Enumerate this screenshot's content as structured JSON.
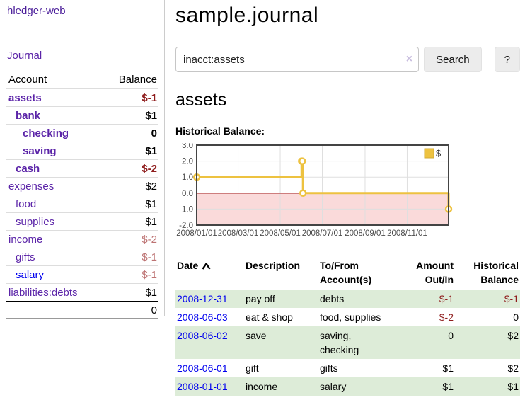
{
  "app": {
    "brand": "hledger-web",
    "nav_journal": "Journal"
  },
  "colors": {
    "link_purple": "#5b24a8",
    "link_blue": "#0000ee",
    "negative_strong": "#8f1d1d",
    "negative_soft": "#bd7373",
    "row_green": "#ddecd8",
    "series_yellow": "#EDC240",
    "chart_negative_region": "#fadada",
    "chart_zero_line": "#a22222",
    "button_gray": "#ececec"
  },
  "sidebar": {
    "header": {
      "account": "Account",
      "balance": "Balance"
    },
    "accounts": [
      {
        "name": "assets",
        "depth": 1,
        "bold": true,
        "balance": "$-1",
        "balance_style": "neg-strong",
        "link_style": "visited"
      },
      {
        "name": "bank",
        "depth": 2,
        "bold": true,
        "balance": "$1",
        "balance_style": "pos",
        "link_style": "visited"
      },
      {
        "name": "checking",
        "depth": 3,
        "bold": true,
        "balance": "0",
        "balance_style": "pos",
        "link_style": "visited"
      },
      {
        "name": "saving",
        "depth": 3,
        "bold": true,
        "balance": "$1",
        "balance_style": "pos",
        "link_style": "visited"
      },
      {
        "name": "cash",
        "depth": 2,
        "bold": true,
        "balance": "$-2",
        "balance_style": "neg-strong",
        "link_style": "visited"
      },
      {
        "name": "expenses",
        "depth": 1,
        "bold": false,
        "balance": "$2",
        "balance_style": "pos",
        "link_style": "visited"
      },
      {
        "name": "food",
        "depth": 2,
        "bold": false,
        "balance": "$1",
        "balance_style": "pos",
        "link_style": "visited"
      },
      {
        "name": "supplies",
        "depth": 2,
        "bold": false,
        "balance": "$1",
        "balance_style": "pos",
        "link_style": "visited"
      },
      {
        "name": "income",
        "depth": 1,
        "bold": false,
        "balance": "$-2",
        "balance_style": "neg-soft",
        "link_style": "visited"
      },
      {
        "name": "gifts",
        "depth": 2,
        "bold": false,
        "balance": "$-1",
        "balance_style": "neg-soft",
        "link_style": "visited"
      },
      {
        "name": "salary",
        "depth": 2,
        "bold": false,
        "balance": "$-1",
        "balance_style": "neg-soft",
        "link_style": "unvisited"
      },
      {
        "name": "liabilities:debts",
        "depth": 1,
        "bold": false,
        "balance": "$1",
        "balance_style": "pos",
        "link_style": "visited"
      }
    ],
    "total": "0"
  },
  "header": {
    "title": "sample.journal"
  },
  "search": {
    "value": "inacct:assets",
    "clear_icon": "×",
    "button": "Search",
    "help_button": "?"
  },
  "account_page": {
    "title": "assets",
    "chart_label": "Historical Balance:"
  },
  "chart_data": {
    "type": "line",
    "title": "Historical Balance",
    "step": true,
    "series": [
      {
        "name": "$",
        "color": "#EDC240",
        "points": [
          [
            "2008-01-01",
            1
          ],
          [
            "2008-06-01",
            2
          ],
          [
            "2008-06-02",
            2
          ],
          [
            "2008-06-03",
            0
          ],
          [
            "2008-12-31",
            -1
          ]
        ]
      }
    ],
    "x_range": [
      "2008-01-01",
      "2008-12-31"
    ],
    "ylim": [
      -2,
      3
    ],
    "y_ticks": [
      3.0,
      2.0,
      1.0,
      0.0,
      -1.0,
      -2.0
    ],
    "x_ticks": [
      "2008/01/01",
      "2008/03/01",
      "2008/05/01",
      "2008/07/01",
      "2008/09/01",
      "2008/11/01"
    ],
    "grid": true,
    "legend": "$",
    "legend_position": "top-right",
    "negative_region": {
      "from": 0,
      "to": -2
    }
  },
  "transactions": {
    "columns": [
      {
        "label": "Date",
        "sorted": "asc",
        "align": "left"
      },
      {
        "label": "Description",
        "align": "left"
      },
      {
        "label": "To/From\nAccount(s)",
        "align": "left"
      },
      {
        "label": "Amount\nOut/In",
        "align": "right"
      },
      {
        "label": "Historical\nBalance",
        "align": "right"
      }
    ],
    "rows": [
      {
        "date": "2008-12-31",
        "description": "pay off",
        "tofrom": "debts",
        "amount": "$-1",
        "amount_negative": true,
        "balance": "$-1",
        "balance_negative": true
      },
      {
        "date": "2008-06-03",
        "description": "eat & shop",
        "tofrom": "food, supplies",
        "amount": "$-2",
        "amount_negative": true,
        "balance": "0",
        "balance_negative": false
      },
      {
        "date": "2008-06-02",
        "description": "save",
        "tofrom": "saving,\nchecking",
        "amount": "0",
        "amount_negative": false,
        "balance": "$2",
        "balance_negative": false
      },
      {
        "date": "2008-06-01",
        "description": "gift",
        "tofrom": "gifts",
        "amount": "$1",
        "amount_negative": false,
        "balance": "$2",
        "balance_negative": false
      },
      {
        "date": "2008-01-01",
        "description": "income",
        "tofrom": "salary",
        "amount": "$1",
        "amount_negative": false,
        "balance": "$1",
        "balance_negative": false
      }
    ]
  }
}
